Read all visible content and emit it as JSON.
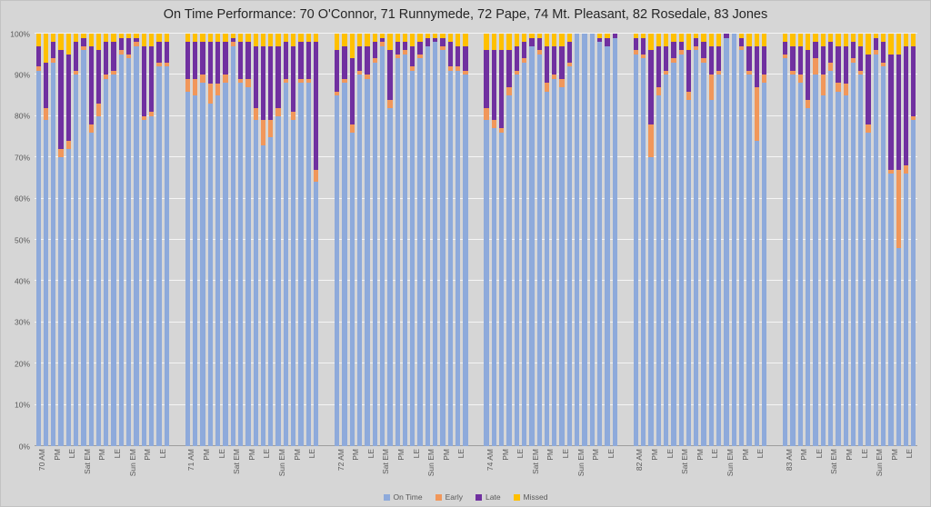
{
  "chart_data": {
    "type": "bar",
    "stacked": true,
    "title": "On Time Performance: 70 O'Connor, 71 Runnymede, 72 Pape, 74 Mt. Pleasant, 82 Rosedale, 83 Jones",
    "xlabel": "",
    "ylabel": "",
    "ylim": [
      0,
      100
    ],
    "grid": true,
    "legend_position": "bottom",
    "value_unit": "percent",
    "bar_value_order": [
      "On Time",
      "Early",
      "Late",
      "Missed"
    ],
    "yticks": [
      {
        "value": 0,
        "label": "0%"
      },
      {
        "value": 10,
        "label": "10%"
      },
      {
        "value": 20,
        "label": "20%"
      },
      {
        "value": 30,
        "label": "30%"
      },
      {
        "value": 40,
        "label": "40%"
      },
      {
        "value": 50,
        "label": "50%"
      },
      {
        "value": 60,
        "label": "60%"
      },
      {
        "value": 70,
        "label": "70%"
      },
      {
        "value": 80,
        "label": "80%"
      },
      {
        "value": 90,
        "label": "90%"
      },
      {
        "value": 100,
        "label": "100%"
      }
    ],
    "series": [
      {
        "name": "On Time",
        "color": "#8EAADB"
      },
      {
        "name": "Early",
        "color": "#F1975A"
      },
      {
        "name": "Late",
        "color": "#7030A0"
      },
      {
        "name": "Missed",
        "color": "#FFC000"
      }
    ],
    "groups": [
      {
        "route": "70 O'Connor",
        "periods": [
          {
            "label": "70 AM",
            "bars": [
              [
                91,
                1,
                5,
                3
              ],
              [
                79,
                3,
                11,
                7
              ]
            ]
          },
          {
            "label": "PM",
            "bars": [
              [
                93,
                1,
                4,
                2
              ],
              [
                70,
                2,
                24,
                4
              ]
            ]
          },
          {
            "label": "LE",
            "bars": [
              [
                72,
                2,
                21,
                5
              ],
              [
                90,
                1,
                7,
                2
              ]
            ]
          },
          {
            "label": "Sat EM",
            "bars": [
              [
                96,
                1,
                2,
                1
              ],
              [
                76,
                2,
                19,
                3
              ]
            ]
          },
          {
            "label": "PM",
            "bars": [
              [
                80,
                3,
                13,
                4
              ],
              [
                89,
                1,
                8,
                2
              ]
            ]
          },
          {
            "label": "LE",
            "bars": [
              [
                90,
                1,
                7,
                2
              ],
              [
                95,
                1,
                3,
                1
              ]
            ]
          },
          {
            "label": "Sun EM",
            "bars": [
              [
                94,
                1,
                4,
                1
              ],
              [
                97,
                1,
                1,
                1
              ]
            ]
          },
          {
            "label": "PM",
            "bars": [
              [
                79,
                1,
                17,
                3
              ],
              [
                80,
                1,
                16,
                3
              ]
            ]
          },
          {
            "label": "LE",
            "bars": [
              [
                92,
                1,
                5,
                2
              ],
              [
                92,
                1,
                5,
                2
              ]
            ]
          }
        ]
      },
      {
        "route": "71 Runnymede",
        "periods": [
          {
            "label": "71 AM",
            "bars": [
              [
                86,
                3,
                9,
                2
              ],
              [
                85,
                4,
                9,
                2
              ]
            ]
          },
          {
            "label": "PM",
            "bars": [
              [
                88,
                2,
                8,
                2
              ],
              [
                83,
                5,
                10,
                2
              ]
            ]
          },
          {
            "label": "LE",
            "bars": [
              [
                85,
                3,
                10,
                2
              ],
              [
                88,
                2,
                8,
                2
              ]
            ]
          },
          {
            "label": "Sat EM",
            "bars": [
              [
                97,
                1,
                1,
                1
              ],
              [
                88,
                1,
                9,
                2
              ]
            ]
          },
          {
            "label": "PM",
            "bars": [
              [
                87,
                2,
                9,
                2
              ],
              [
                79,
                3,
                15,
                3
              ]
            ]
          },
          {
            "label": "LE",
            "bars": [
              [
                73,
                6,
                18,
                3
              ],
              [
                75,
                4,
                18,
                3
              ]
            ]
          },
          {
            "label": "Sun EM",
            "bars": [
              [
                80,
                2,
                15,
                3
              ],
              [
                88,
                1,
                9,
                2
              ]
            ]
          },
          {
            "label": "PM",
            "bars": [
              [
                79,
                2,
                16,
                3
              ],
              [
                88,
                1,
                9,
                2
              ]
            ]
          },
          {
            "label": "LE",
            "bars": [
              [
                88,
                1,
                9,
                2
              ],
              [
                64,
                3,
                31,
                2
              ]
            ]
          }
        ]
      },
      {
        "route": "72 Pape",
        "periods": [
          {
            "label": "72 AM",
            "bars": [
              [
                85,
                1,
                10,
                4
              ],
              [
                88,
                1,
                8,
                3
              ]
            ]
          },
          {
            "label": "PM",
            "bars": [
              [
                76,
                2,
                16,
                6
              ],
              [
                90,
                1,
                6,
                3
              ]
            ]
          },
          {
            "label": "LE",
            "bars": [
              [
                89,
                1,
                7,
                3
              ],
              [
                93,
                1,
                4,
                2
              ]
            ]
          },
          {
            "label": "Sat EM",
            "bars": [
              [
                97,
                1,
                1,
                1
              ],
              [
                82,
                2,
                12,
                4
              ]
            ]
          },
          {
            "label": "PM",
            "bars": [
              [
                94,
                1,
                3,
                2
              ],
              [
                95,
                1,
                2,
                2
              ]
            ]
          },
          {
            "label": "LE",
            "bars": [
              [
                91,
                1,
                5,
                3
              ],
              [
                94,
                1,
                3,
                2
              ]
            ]
          },
          {
            "label": "Sun EM",
            "bars": [
              [
                97,
                0,
                2,
                1
              ],
              [
                98,
                0,
                1,
                1
              ]
            ]
          },
          {
            "label": "PM",
            "bars": [
              [
                96,
                1,
                2,
                1
              ],
              [
                91,
                1,
                6,
                2
              ]
            ]
          },
          {
            "label": "LE",
            "bars": [
              [
                91,
                1,
                5,
                3
              ],
              [
                90,
                1,
                6,
                3
              ]
            ]
          }
        ]
      },
      {
        "route": "74 Mt. Pleasant",
        "periods": [
          {
            "label": "74 AM",
            "bars": [
              [
                79,
                3,
                14,
                4
              ],
              [
                77,
                2,
                17,
                4
              ]
            ]
          },
          {
            "label": "PM",
            "bars": [
              [
                76,
                1,
                19,
                4
              ],
              [
                85,
                2,
                9,
                4
              ]
            ]
          },
          {
            "label": "LE",
            "bars": [
              [
                90,
                1,
                6,
                3
              ],
              [
                93,
                1,
                4,
                2
              ]
            ]
          },
          {
            "label": "Sat EM",
            "bars": [
              [
                97,
                0,
                2,
                1
              ],
              [
                95,
                1,
                3,
                1
              ]
            ]
          },
          {
            "label": "PM",
            "bars": [
              [
                86,
                2,
                9,
                3
              ],
              [
                89,
                1,
                7,
                3
              ]
            ]
          },
          {
            "label": "LE",
            "bars": [
              [
                87,
                2,
                8,
                3
              ],
              [
                92,
                1,
                5,
                2
              ]
            ]
          },
          {
            "label": "Sun EM",
            "bars": [
              [
                100,
                0,
                0,
                0
              ],
              [
                100,
                0,
                0,
                0
              ]
            ]
          },
          {
            "label": "PM",
            "bars": [
              [
                100,
                0,
                0,
                0
              ],
              [
                98,
                0,
                1,
                1
              ]
            ]
          },
          {
            "label": "LE",
            "bars": [
              [
                97,
                0,
                2,
                1
              ],
              [
                99,
                0,
                1,
                0
              ]
            ]
          }
        ]
      },
      {
        "route": "82 Rosedale",
        "periods": [
          {
            "label": "82 AM",
            "bars": [
              [
                95,
                1,
                3,
                1
              ],
              [
                94,
                1,
                4,
                1
              ]
            ]
          },
          {
            "label": "PM",
            "bars": [
              [
                70,
                8,
                18,
                4
              ],
              [
                85,
                2,
                10,
                3
              ]
            ]
          },
          {
            "label": "LE",
            "bars": [
              [
                90,
                1,
                6,
                3
              ],
              [
                93,
                1,
                4,
                2
              ]
            ]
          },
          {
            "label": "Sat EM",
            "bars": [
              [
                95,
                1,
                2,
                2
              ],
              [
                84,
                2,
                10,
                4
              ]
            ]
          },
          {
            "label": "PM",
            "bars": [
              [
                96,
                1,
                2,
                1
              ],
              [
                93,
                1,
                4,
                2
              ]
            ]
          },
          {
            "label": "LE",
            "bars": [
              [
                84,
                6,
                7,
                3
              ],
              [
                90,
                1,
                6,
                3
              ]
            ]
          },
          {
            "label": "Sun EM",
            "bars": [
              [
                99,
                0,
                1,
                0
              ],
              [
                100,
                0,
                0,
                0
              ]
            ]
          },
          {
            "label": "PM",
            "bars": [
              [
                96,
                1,
                2,
                1
              ],
              [
                90,
                1,
                6,
                3
              ]
            ]
          },
          {
            "label": "LE",
            "bars": [
              [
                74,
                13,
                10,
                3
              ],
              [
                88,
                2,
                7,
                3
              ]
            ]
          }
        ]
      },
      {
        "route": "83 Jones",
        "periods": [
          {
            "label": "83 AM",
            "bars": [
              [
                94,
                1,
                3,
                2
              ],
              [
                90,
                1,
                6,
                3
              ]
            ]
          },
          {
            "label": "PM",
            "bars": [
              [
                88,
                2,
                7,
                3
              ],
              [
                82,
                2,
                12,
                4
              ]
            ]
          },
          {
            "label": "LE",
            "bars": [
              [
                90,
                4,
                4,
                2
              ],
              [
                85,
                5,
                7,
                3
              ]
            ]
          },
          {
            "label": "Sat EM",
            "bars": [
              [
                91,
                2,
                5,
                2
              ],
              [
                86,
                2,
                9,
                3
              ]
            ]
          },
          {
            "label": "PM",
            "bars": [
              [
                85,
                3,
                9,
                3
              ],
              [
                93,
                1,
                4,
                2
              ]
            ]
          },
          {
            "label": "LE",
            "bars": [
              [
                90,
                1,
                6,
                3
              ],
              [
                76,
                2,
                17,
                5
              ]
            ]
          },
          {
            "label": "Sun EM",
            "bars": [
              [
                95,
                1,
                3,
                1
              ],
              [
                92,
                1,
                5,
                2
              ]
            ]
          },
          {
            "label": "PM",
            "bars": [
              [
                66,
                1,
                28,
                5
              ],
              [
                48,
                19,
                28,
                5
              ]
            ]
          },
          {
            "label": "LE",
            "bars": [
              [
                66,
                2,
                29,
                3
              ],
              [
                79,
                1,
                17,
                3
              ]
            ]
          }
        ]
      }
    ]
  }
}
